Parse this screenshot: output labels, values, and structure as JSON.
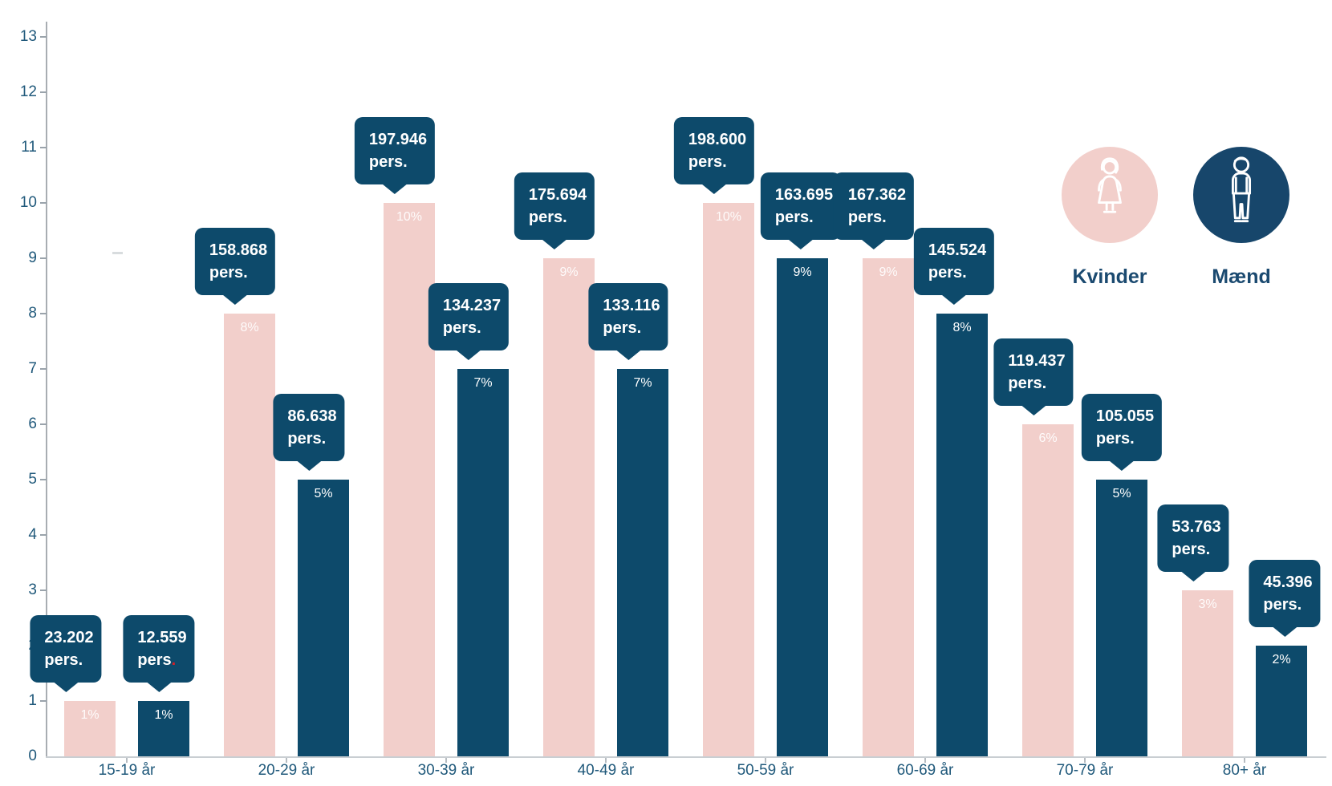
{
  "legend": {
    "items": [
      {
        "label": "Kvinder",
        "icon": "woman-icon",
        "circle_color": "#f2cfcb"
      },
      {
        "label": "Mænd",
        "icon": "man-icon",
        "circle_color": "#17466b"
      }
    ]
  },
  "colors": {
    "female_bar": "#f2cfcb",
    "male_bar": "#0d4a6b",
    "callout_bg": "#0d4a6b",
    "axis_text": "#20597b",
    "legend_text": "#1b4a70",
    "axis_line": "#a8adb2",
    "baseline": "#c9ced2",
    "red_period": "#d62027"
  },
  "chart_data": {
    "type": "bar",
    "categories": [
      "15-19 år",
      "20-29 år",
      "30-39 år",
      "40-49 år",
      "50-59 år",
      "60-69 år",
      "70-79 år",
      "80+ år"
    ],
    "series": [
      {
        "name": "Kvinder",
        "color": "#f2cfcb",
        "values_percent": [
          1,
          8,
          10,
          9,
          10,
          9,
          6,
          3
        ],
        "percent_labels": [
          "1%",
          "8%",
          "10%",
          "9%",
          "10%",
          "9%",
          "6%",
          "3%"
        ],
        "persons": [
          "23.202",
          "158.868",
          "197.946",
          "175.694",
          "198.600",
          "167.362",
          "119.437",
          "53.763"
        ]
      },
      {
        "name": "Mænd",
        "color": "#0d4a6b",
        "values_percent": [
          1,
          5,
          7,
          7,
          9,
          8,
          5,
          2
        ],
        "percent_labels": [
          "1%",
          "5%",
          "7%",
          "7%",
          "9%",
          "8%",
          "5%",
          "2%"
        ],
        "persons": [
          "12.559",
          "86.638",
          "134.237",
          "133.116",
          "163.695",
          "145.524",
          "105.055",
          "45.396"
        ]
      }
    ],
    "callout_unit": "pers.",
    "callout_unit_prefix": "pers",
    "callout_unit_period": ".",
    "callout_red_period": {
      "series_index": 1,
      "category_index": 0
    },
    "y_ticks": [
      "0",
      "1",
      "2",
      "3",
      "4",
      "5",
      "6",
      "7",
      "8",
      "9",
      "10",
      "11",
      "12",
      "13"
    ],
    "ylim": [
      0,
      13
    ],
    "grid": false,
    "legend_position": "top-right"
  }
}
